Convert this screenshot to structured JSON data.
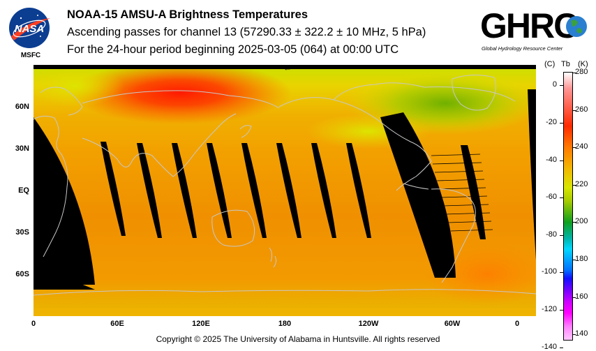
{
  "header": {
    "title": "NOAA-15 AMSU-A Brightness Temperatures",
    "subtitle1": "Ascending passes for channel 13 (57290.33 ± 322.2 ± 10 MHz, 5 hPa)",
    "subtitle2": "For the 24-hour period beginning 2025-03-05 (064) at 00:00 UTC"
  },
  "nasa_logo": {
    "text": "NASA",
    "caption": "MSFC",
    "color": "#0b3d91",
    "accent": "#fc3d21"
  },
  "ghrc_logo": {
    "text": "GHRC",
    "tagline": "Global Hydrology Resource Center"
  },
  "map": {
    "lat_labels": [
      "60N",
      "30N",
      "EQ",
      "30S",
      "60S"
    ],
    "lon_labels": [
      "0",
      "60E",
      "120E",
      "180",
      "120W",
      "60W",
      "0"
    ],
    "direction_glyph": "←"
  },
  "colorbar": {
    "header_c": "(C)",
    "header_tb": "Tb",
    "header_k": "(K)",
    "kelvin_ticks": [
      "280",
      "260",
      "240",
      "220",
      "200",
      "180",
      "160",
      "140"
    ],
    "celsius_ticks": [
      "0",
      "-20",
      "-40",
      "-60",
      "-80",
      "-100",
      "-120",
      "-140"
    ]
  },
  "footer": {
    "copyright": "Copyright © 2025 The University of Alabama in Huntsville.  All rights reserved"
  }
}
